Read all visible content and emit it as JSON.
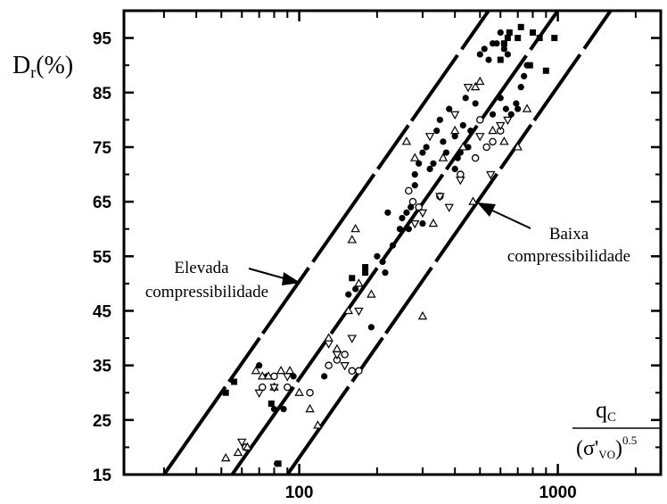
{
  "chart_data": {
    "type": "scatter",
    "title": "",
    "xscale": "log",
    "xlim": [
      21,
      2500
    ],
    "ylim": [
      15,
      100
    ],
    "x_ticks": [
      100,
      1000
    ],
    "y_ticks": [
      15,
      25,
      35,
      45,
      55,
      65,
      75,
      85,
      95
    ],
    "ylabel": {
      "main": "D",
      "sub": "r",
      "rest": "(%)"
    },
    "xlabel": {
      "numerator": "q",
      "numerator_sub": "C",
      "denominator": "(σ'",
      "denominator_sub": "VO",
      "denominator_close": ")",
      "exponent": "0.5"
    },
    "annotations": [
      {
        "lines": [
          "Elevada",
          "compressibilidade"
        ]
      },
      {
        "lines": [
          "Baixa",
          "compressibilidade"
        ]
      }
    ],
    "grid": false,
    "reference_lines": [
      {
        "name": "upper",
        "points": [
          [
            30,
            15
          ],
          [
            540,
            100
          ]
        ]
      },
      {
        "name": "middle",
        "points": [
          [
            55,
            15
          ],
          [
            1000,
            100
          ]
        ]
      },
      {
        "name": "lower",
        "points": [
          [
            90,
            15
          ],
          [
            1600,
            100
          ]
        ]
      }
    ],
    "series": [
      {
        "marker": "filled-square",
        "points": [
          [
            52,
            30
          ],
          [
            56,
            32
          ],
          [
            78,
            28
          ],
          [
            83,
            17
          ],
          [
            160,
            51
          ],
          [
            180,
            53
          ],
          [
            180,
            52
          ],
          [
            620,
            94
          ],
          [
            650,
            96
          ],
          [
            700,
            95
          ],
          [
            640,
            95
          ],
          [
            600,
            91
          ],
          [
            780,
            90
          ],
          [
            800,
            96
          ],
          [
            850,
            95
          ],
          [
            900,
            89
          ],
          [
            720,
            97
          ],
          [
            970,
            95
          ]
        ]
      },
      {
        "marker": "filled-circle",
        "points": [
          [
            70,
            35
          ],
          [
            75,
            33
          ],
          [
            80,
            27
          ],
          [
            87,
            27
          ],
          [
            82,
            17
          ],
          [
            95,
            33
          ],
          [
            125,
            33
          ],
          [
            155,
            48
          ],
          [
            165,
            49
          ],
          [
            190,
            42
          ],
          [
            200,
            55
          ],
          [
            210,
            54
          ],
          [
            215,
            52
          ],
          [
            220,
            63
          ],
          [
            230,
            57
          ],
          [
            250,
            62
          ],
          [
            260,
            63
          ],
          [
            270,
            64
          ],
          [
            280,
            70
          ],
          [
            290,
            72
          ],
          [
            300,
            74
          ],
          [
            310,
            75
          ],
          [
            320,
            71
          ],
          [
            330,
            72
          ],
          [
            340,
            78
          ],
          [
            350,
            80
          ],
          [
            360,
            76
          ],
          [
            370,
            74
          ],
          [
            380,
            82
          ],
          [
            400,
            77
          ],
          [
            420,
            74
          ],
          [
            430,
            79
          ],
          [
            440,
            84
          ],
          [
            450,
            75
          ],
          [
            460,
            78
          ],
          [
            480,
            83
          ],
          [
            500,
            92
          ],
          [
            520,
            93
          ],
          [
            540,
            91
          ],
          [
            560,
            94
          ],
          [
            580,
            94
          ],
          [
            600,
            96
          ],
          [
            620,
            93
          ],
          [
            640,
            92
          ],
          [
            660,
            81
          ],
          [
            690,
            83
          ],
          [
            720,
            86
          ],
          [
            740,
            88
          ],
          [
            760,
            90
          ],
          [
            560,
            81
          ],
          [
            600,
            84
          ],
          [
            630,
            82
          ],
          [
            700,
            82
          ],
          [
            300,
            61
          ],
          [
            280,
            68
          ],
          [
            265,
            60
          ],
          [
            245,
            60
          ],
          [
            400,
            71
          ],
          [
            410,
            73
          ]
        ]
      },
      {
        "marker": "open-circle",
        "points": [
          [
            62,
            20
          ],
          [
            72,
            31
          ],
          [
            80,
            33
          ],
          [
            90,
            31
          ],
          [
            110,
            30
          ],
          [
            130,
            35
          ],
          [
            140,
            36
          ],
          [
            150,
            37
          ],
          [
            160,
            34
          ],
          [
            170,
            34
          ],
          [
            265,
            67
          ],
          [
            275,
            65
          ],
          [
            290,
            64
          ],
          [
            350,
            66
          ],
          [
            420,
            70
          ],
          [
            480,
            73
          ],
          [
            500,
            80
          ],
          [
            530,
            75
          ],
          [
            560,
            76
          ],
          [
            600,
            78
          ]
        ]
      },
      {
        "marker": "triangle-up",
        "points": [
          [
            52,
            18
          ],
          [
            58,
            19
          ],
          [
            63,
            20
          ],
          [
            68,
            34
          ],
          [
            72,
            33
          ],
          [
            76,
            33
          ],
          [
            80,
            31
          ],
          [
            85,
            34
          ],
          [
            92,
            34
          ],
          [
            100,
            30
          ],
          [
            110,
            27
          ],
          [
            118,
            24
          ],
          [
            130,
            40
          ],
          [
            140,
            38
          ],
          [
            155,
            45
          ],
          [
            160,
            58
          ],
          [
            165,
            60
          ],
          [
            170,
            50
          ],
          [
            190,
            48
          ],
          [
            260,
            76
          ],
          [
            280,
            73
          ],
          [
            300,
            44
          ],
          [
            330,
            61
          ],
          [
            360,
            73
          ],
          [
            400,
            78
          ],
          [
            430,
            75
          ],
          [
            470,
            65
          ],
          [
            480,
            86
          ],
          [
            500,
            87
          ],
          [
            560,
            78
          ],
          [
            620,
            76
          ],
          [
            700,
            75
          ],
          [
            760,
            82
          ]
        ]
      },
      {
        "marker": "triangle-down",
        "points": [
          [
            60,
            21
          ],
          [
            70,
            30
          ],
          [
            80,
            31
          ],
          [
            90,
            33
          ],
          [
            130,
            39
          ],
          [
            140,
            37
          ],
          [
            150,
            35
          ],
          [
            160,
            40
          ],
          [
            170,
            45
          ],
          [
            280,
            61
          ],
          [
            300,
            63
          ],
          [
            320,
            77
          ],
          [
            350,
            66
          ],
          [
            380,
            64
          ],
          [
            400,
            81
          ],
          [
            420,
            69
          ],
          [
            450,
            86
          ],
          [
            500,
            77
          ],
          [
            550,
            70
          ],
          [
            600,
            79
          ],
          [
            640,
            80
          ]
        ]
      }
    ]
  }
}
